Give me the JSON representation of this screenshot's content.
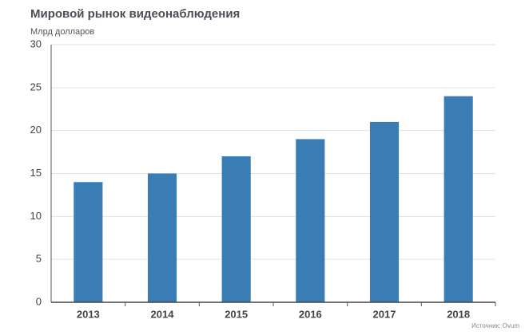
{
  "chart_data": {
    "type": "bar",
    "title": "Мировой рынок видеонаблюдения",
    "y_label": "Млрд долларов",
    "source": "Источник: Ovum",
    "categories": [
      "2013",
      "2014",
      "2015",
      "2016",
      "2017",
      "2018"
    ],
    "values": [
      14,
      15,
      17,
      19,
      21,
      24
    ],
    "color": "#3a7db5",
    "ylim": [
      0,
      30
    ],
    "yticks": [
      0,
      5,
      10,
      15,
      20,
      25,
      30
    ],
    "grid": true
  }
}
